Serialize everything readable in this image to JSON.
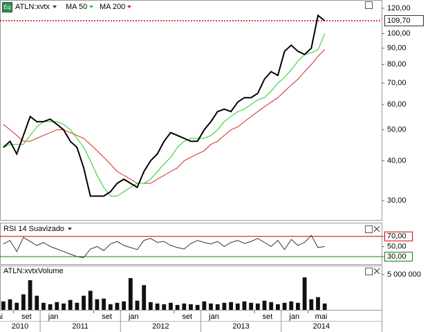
{
  "time_axis": {
    "x": [
      "2010-07",
      "2010-08",
      "2010-09",
      "2010-10",
      "2010-11",
      "2010-12",
      "2011-01",
      "2011-02",
      "2011-03",
      "2011-04",
      "2011-05",
      "2011-06",
      "2011-07",
      "2011-08",
      "2011-09",
      "2011-10",
      "2011-11",
      "2011-12",
      "2012-01",
      "2012-02",
      "2012-03",
      "2012-04",
      "2012-05",
      "2012-06",
      "2012-07",
      "2012-08",
      "2012-09",
      "2012-10",
      "2012-11",
      "2012-12",
      "2013-01",
      "2013-02",
      "2013-03",
      "2013-04",
      "2013-05",
      "2013-06",
      "2013-07",
      "2013-08",
      "2013-09",
      "2013-10",
      "2013-11",
      "2013-12",
      "2014-01",
      "2014-02",
      "2014-03",
      "2014-04",
      "2014-05",
      "2014-06",
      "2014-07"
    ],
    "xlim": [
      "2010-07",
      "2015-04"
    ],
    "xticks": [
      {
        "value": "2010-05",
        "label": "ai"
      },
      {
        "value": "2010-09",
        "label": "set"
      },
      {
        "value": "2011-01",
        "label": "jan"
      },
      {
        "value": "2011-09",
        "label": "set"
      },
      {
        "value": "2012-01",
        "label": "jan"
      },
      {
        "value": "2012-09",
        "label": "set"
      },
      {
        "value": "2013-01",
        "label": "jan"
      },
      {
        "value": "2013-09",
        "label": "set"
      },
      {
        "value": "2014-01",
        "label": "jan"
      },
      {
        "value": "2014-05",
        "label": "mai"
      }
    ],
    "years": [
      2010,
      2011,
      2012,
      2013,
      2014
    ]
  },
  "chart_data": [
    {
      "type": "line",
      "icon": "Eq",
      "log_scale": true,
      "ylim": [
        26.1,
        127.4
      ],
      "yticks": [
        {
          "value": 30,
          "label": "30,00"
        },
        {
          "value": 40,
          "label": "40,00"
        },
        {
          "value": 50,
          "label": "50,00"
        },
        {
          "value": 60,
          "label": "60,00"
        },
        {
          "value": 70,
          "label": "70,00"
        },
        {
          "value": 80,
          "label": "80,00"
        },
        {
          "value": 90,
          "label": "90,00"
        },
        {
          "value": 100,
          "label": "100,00"
        },
        {
          "value": 120,
          "label": "120,00"
        }
      ],
      "last_price": {
        "value": 109.7,
        "label": "109,70",
        "color": "#cc0000"
      },
      "series": [
        {
          "name": "ATLN:xvtx",
          "color": "#000000",
          "values": [
            44,
            46,
            42,
            48,
            55,
            53,
            53,
            54,
            52,
            50,
            46,
            44,
            38,
            31,
            31,
            31,
            32,
            34,
            35,
            34,
            33,
            37,
            40,
            42,
            46,
            49,
            48,
            47,
            46,
            46,
            50,
            53,
            57,
            58,
            57,
            61,
            63,
            63,
            65,
            72,
            76,
            74,
            88,
            92,
            88,
            86,
            90,
            114,
            109.7
          ]
        },
        {
          "name": "MA 50",
          "color": "#22cc22",
          "values": [
            44,
            45,
            45,
            45,
            48,
            51,
            53,
            53,
            53,
            52,
            50,
            47,
            44,
            40,
            36,
            33,
            31,
            31,
            32,
            33,
            34,
            34,
            35,
            37,
            39,
            41,
            44,
            46,
            47,
            47,
            47,
            48,
            50,
            53,
            55,
            57,
            58,
            60,
            62,
            63,
            66,
            70,
            73,
            77,
            82,
            86,
            87,
            89,
            100
          ]
        },
        {
          "name": "MA 200",
          "color": "#dd2222",
          "values": [
            52,
            50,
            48,
            46,
            46,
            47,
            48,
            49,
            50,
            50,
            49,
            48,
            47,
            45,
            43,
            41,
            39,
            37,
            36,
            35,
            34,
            34,
            34,
            35,
            36,
            37,
            38,
            40,
            41,
            42,
            43,
            45,
            46,
            48,
            50,
            51,
            53,
            55,
            57,
            59,
            61,
            63,
            66,
            69,
            72,
            76,
            80,
            85,
            89
          ]
        }
      ]
    },
    {
      "type": "line",
      "title": "RSI 14 Suavizado",
      "ylim": [
        15,
        97
      ],
      "yticks": [
        {
          "value": 30,
          "label": "30,00"
        },
        {
          "value": 50,
          "label": "50,00"
        },
        {
          "value": 70,
          "label": "70,00"
        }
      ],
      "reference_lines": [
        {
          "value": 70,
          "color": "#cc0000"
        },
        {
          "value": 30,
          "color": "#008800"
        }
      ],
      "series": [
        {
          "color": "#333333",
          "values": [
            55,
            62,
            40,
            68,
            60,
            52,
            58,
            50,
            45,
            40,
            35,
            30,
            28,
            45,
            50,
            42,
            55,
            60,
            52,
            48,
            44,
            62,
            66,
            58,
            60,
            52,
            48,
            45,
            56,
            62,
            58,
            55,
            60,
            50,
            58,
            62,
            56,
            60,
            66,
            58,
            50,
            62,
            44,
            64,
            52,
            58,
            72,
            48,
            50
          ]
        }
      ]
    },
    {
      "type": "bar",
      "title": "ATLN:xvtxVolume",
      "ylim": [
        0,
        6270000
      ],
      "yticks": [
        {
          "value": 5000000,
          "label": "5 000 000"
        }
      ],
      "color": "#111111",
      "values": [
        1200000,
        1500000,
        1000000,
        2200000,
        4200000,
        2000000,
        1000000,
        800000,
        1100000,
        900000,
        1400000,
        1000000,
        2000000,
        2700000,
        1500000,
        1600000,
        800000,
        1000000,
        1200000,
        4500000,
        1300000,
        3500000,
        1100000,
        900000,
        800000,
        1000000,
        700000,
        900000,
        800000,
        700000,
        1200000,
        900000,
        800000,
        1000000,
        1100000,
        900000,
        1200000,
        1000000,
        900000,
        1300000,
        1100000,
        800000,
        1000000,
        1200000,
        1000000,
        4600000,
        1500000,
        1800000,
        900000
      ]
    }
  ]
}
